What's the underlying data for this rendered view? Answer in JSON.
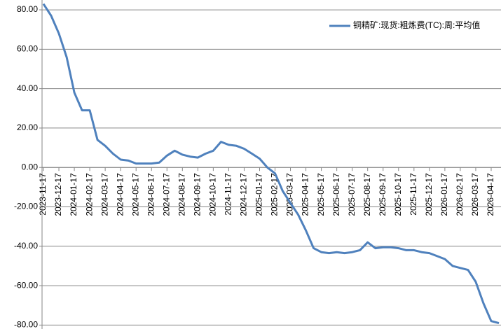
{
  "chart_data": {
    "type": "line",
    "categories": [
      "2023-11-17",
      null,
      "2023-12-17",
      null,
      "2024-01-17",
      null,
      "2024-02-17",
      null,
      "2024-03-17",
      null,
      "2024-04-17",
      null,
      "2024-05-17",
      null,
      "2024-06-17",
      null,
      "2024-07-17",
      null,
      "2024-08-17",
      null,
      "2024-09-17",
      null,
      "2024-10-17",
      null,
      "2024-11-17",
      null,
      "2024-12-17",
      null,
      "2025-01-17",
      null,
      "2025-02-17",
      null,
      "2025-03-17",
      null,
      "2025-04-17",
      null,
      "2025-05-17",
      null,
      "2025-06-17",
      null,
      "2025-07-17",
      null,
      "2025-08-17",
      null,
      "2025-09-17",
      null,
      "2025-10-17",
      null,
      "2025-11-17",
      null,
      "2025-12-17",
      null,
      "2026-01-17",
      null,
      "2026-02-17",
      null,
      "2026-03-17",
      null,
      "2026-04-17",
      null
    ],
    "series": [
      {
        "name": "铜精矿:现货:粗炼费(TC):周:平均值",
        "color": "#4f81bd",
        "values": [
          83,
          77,
          68,
          56,
          38,
          29,
          29,
          14,
          11,
          7,
          4,
          3.5,
          2,
          2,
          2,
          2.5,
          6,
          8.5,
          6.5,
          5.5,
          5,
          7,
          8.5,
          13,
          11.5,
          11,
          9.5,
          7,
          4.5,
          0,
          -3,
          -12,
          -18,
          -24,
          -32,
          -41,
          -43,
          -43.5,
          -43,
          -43.5,
          -43,
          -42,
          -38,
          -41,
          -40.5,
          -40.5,
          -41,
          -42,
          -42,
          -43,
          -43.5,
          -45,
          -46.5,
          -50,
          -51,
          -52,
          -58,
          -69,
          -78,
          -79
        ]
      }
    ],
    "ylim": [
      -82,
      85
    ],
    "yticks": [
      {
        "value": -80,
        "label": "-80.00"
      },
      {
        "value": -60,
        "label": "-60.00"
      },
      {
        "value": -40,
        "label": "-40.00"
      },
      {
        "value": -20,
        "label": "-20.00"
      },
      {
        "value": 0,
        "label": "0.00"
      },
      {
        "value": 20,
        "label": "20.00"
      },
      {
        "value": 40,
        "label": "40.00"
      },
      {
        "value": 60,
        "label": "60.00"
      },
      {
        "value": 80,
        "label": "80.00"
      }
    ],
    "grid": true,
    "legend": "top-right"
  }
}
